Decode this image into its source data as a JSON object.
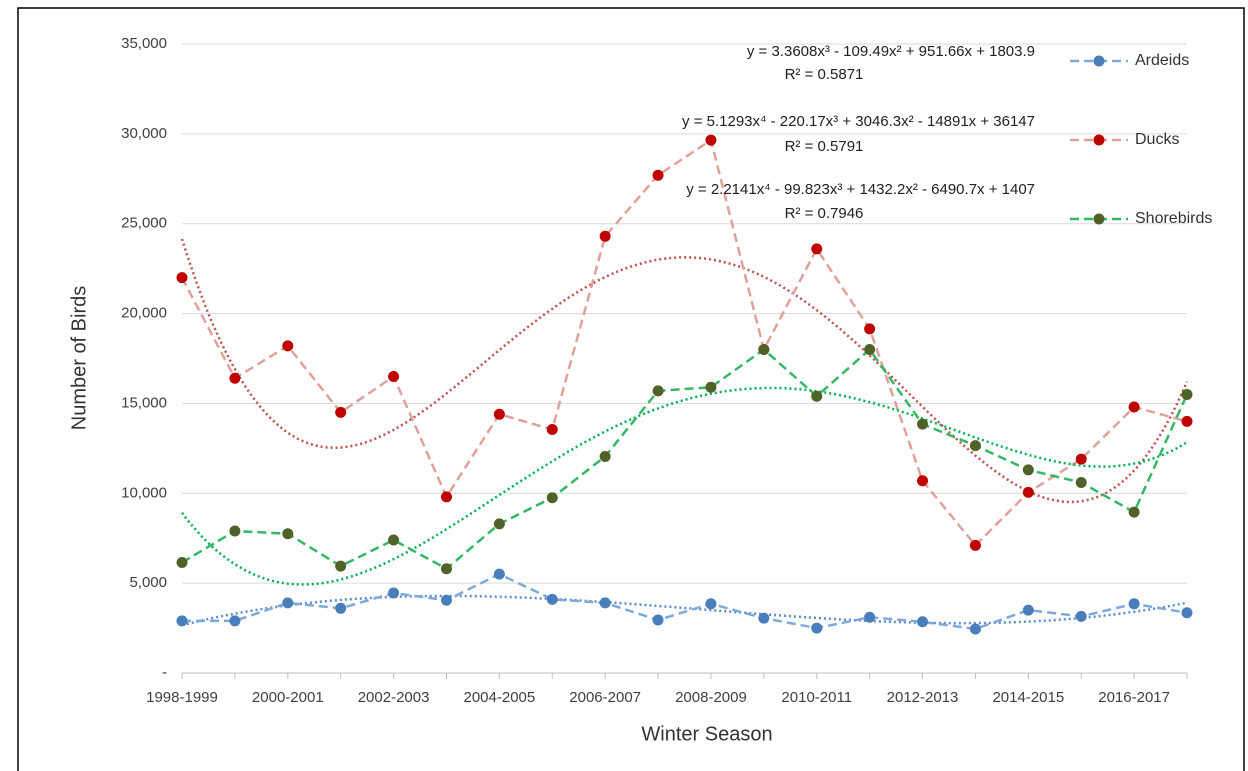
{
  "chart_data": {
    "type": "line",
    "x_label": "Winter Season",
    "y_label": "Number of Birds",
    "categories": [
      "1998-1999",
      null,
      "2000-2001",
      null,
      "2002-2003",
      null,
      "2004-2005",
      null,
      "2006-2007",
      null,
      "2008-2009",
      null,
      "2010-2011",
      null,
      "2012-2013",
      null,
      "2014-2015",
      null,
      "2016-2017",
      null
    ],
    "series": [
      {
        "name": "Ardeids",
        "color": "#7ea9da",
        "marker_color": "#4a7ebb",
        "trendline": {
          "type": "polynomial",
          "order": 3,
          "color": "#5b8ccf"
        },
        "values": [
          2900,
          2900,
          3900,
          3600,
          4450,
          4050,
          5500,
          4100,
          3900,
          2950,
          3850,
          3050,
          2500,
          3100,
          2850,
          2450,
          3500,
          3150,
          3850,
          3350
        ]
      },
      {
        "name": "Ducks",
        "color": "#e0a19b",
        "marker_color": "#c00000",
        "trendline": {
          "type": "polynomial",
          "order": 4,
          "color": "#c0504d"
        },
        "values": [
          22000,
          16400,
          18200,
          14500,
          16500,
          9800,
          14400,
          13550,
          24300,
          27700,
          29650,
          18000,
          23600,
          19150,
          10700,
          7100,
          10050,
          11900,
          14800,
          14000
        ]
      },
      {
        "name": "Shorebirds",
        "color": "#33b864",
        "marker_color": "#4f6228",
        "trendline": {
          "type": "polynomial",
          "order": 4,
          "color": "#00b050"
        },
        "values": [
          6150,
          7900,
          7750,
          5950,
          7400,
          5800,
          8300,
          9750,
          12050,
          15700,
          15900,
          18000,
          15400,
          18000,
          13850,
          12650,
          11300,
          10600,
          8950,
          15500
        ]
      }
    ],
    "annotations": [
      {
        "equation": "y = 3.3608x³ - 109.49x² + 951.66x + 1803.9",
        "r_squared": "R² = 0.5871"
      },
      {
        "equation": "y = 5.1293x⁴ - 220.17x³ + 3046.3x² - 14891x + 36147",
        "r_squared": "R² = 0.5791"
      },
      {
        "equation": "y = 2.2141x⁴ - 99.823x³ + 1432.2x² - 6490.7x + 1407",
        "r_squared": "R² = 0.7946"
      }
    ],
    "ylim": [
      0,
      35000
    ],
    "yticks": [
      {
        "value": 0,
        "label": "-"
      },
      {
        "value": 5000,
        "label": "5,000"
      },
      {
        "value": 10000,
        "label": "10,000"
      },
      {
        "value": 15000,
        "label": "15,000"
      },
      {
        "value": 20000,
        "label": "20,000"
      },
      {
        "value": 25000,
        "label": "25,000"
      },
      {
        "value": 30000,
        "label": "30,000"
      },
      {
        "value": 35000,
        "label": "35,000"
      }
    ],
    "grid": true,
    "legend": "right"
  }
}
